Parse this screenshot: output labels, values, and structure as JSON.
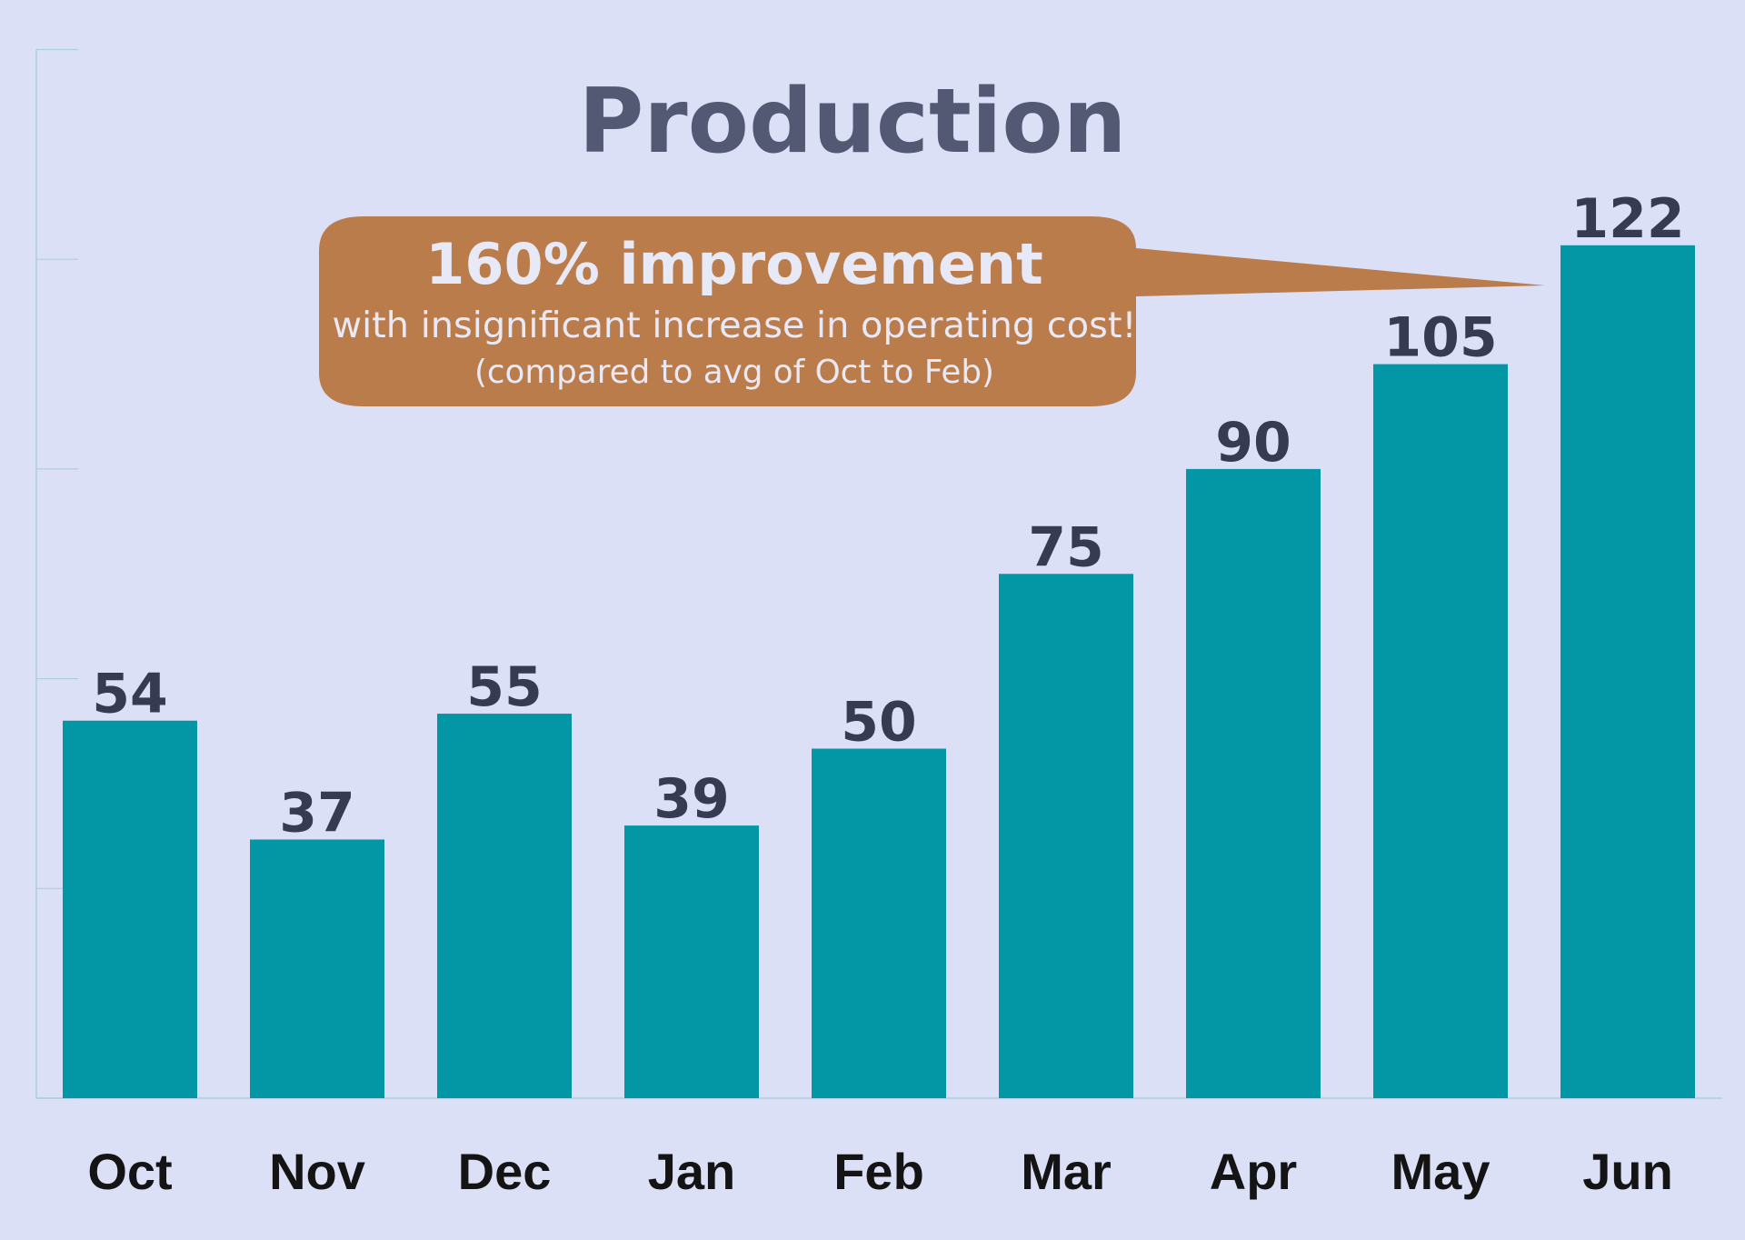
{
  "colors": {
    "background": "#dce0f7",
    "bar": "#0397a6",
    "title": "#535873",
    "value_label": "#363b52",
    "category_label": "#141414",
    "callout_fill": "#bb7c4b",
    "callout_text": "#e8e9f7",
    "axis_line": "#a9cfe0"
  },
  "callout": {
    "headline": "160% improvement",
    "line1": "with insignificant increase in operating cost!",
    "line2": "(compared to avg of Oct to Feb)",
    "points_to": "Jun"
  },
  "chart_data": {
    "type": "bar",
    "title": "Production",
    "xlabel": "",
    "ylabel": "",
    "categories": [
      "Oct",
      "Nov",
      "Dec",
      "Jan",
      "Feb",
      "Mar",
      "Apr",
      "May",
      "Jun"
    ],
    "values": [
      54,
      37,
      55,
      39,
      50,
      75,
      90,
      105,
      122
    ],
    "ylim": [
      0,
      150
    ],
    "grid": false,
    "legend": "none",
    "data_labels": true
  }
}
